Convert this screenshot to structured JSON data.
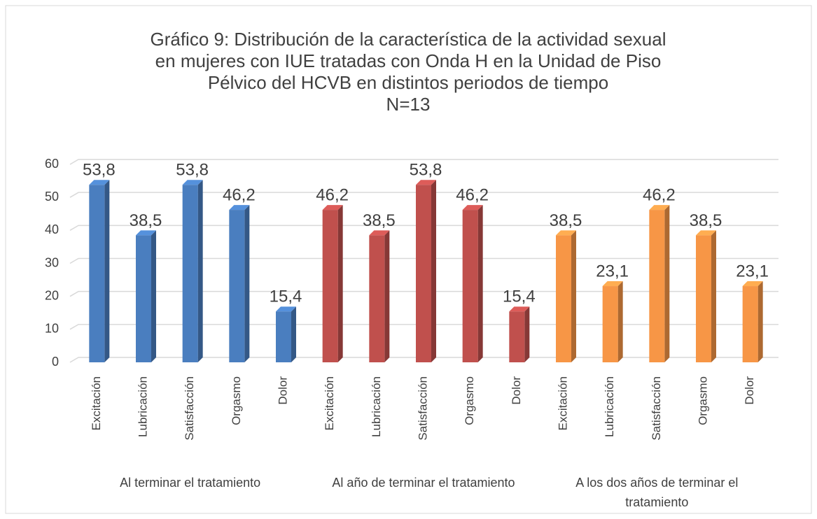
{
  "chart_data": {
    "type": "bar",
    "title": [
      "Gráfico 9: Distribución de la característica de la actividad sexual",
      "en mujeres con IUE tratadas con Onda H en la Unidad de Piso",
      "Pélvico del HCVB en distintos periodos de tiempo"
    ],
    "subtitle": "N=13",
    "groups": [
      {
        "name": "Al terminar el tratamiento",
        "color": "#4a7ebf",
        "categories": [
          "Excitación",
          "Lubricación",
          "Satisfacción",
          "Orgasmo",
          "Dolor"
        ],
        "values": [
          53.8,
          38.5,
          53.8,
          46.2,
          15.4
        ],
        "value_labels": [
          "53,8",
          "38,5",
          "53,8",
          "46,2",
          "15,4"
        ]
      },
      {
        "name": "Al año de terminar el tratamiento",
        "color": "#c0504d",
        "categories": [
          "Excitación",
          "Lubricación",
          "Satisfacción",
          "Orgasmo",
          "Dolor"
        ],
        "values": [
          46.2,
          38.5,
          53.8,
          46.2,
          15.4
        ],
        "value_labels": [
          "46,2",
          "38,5",
          "53,8",
          "46,2",
          "15,4"
        ]
      },
      {
        "name": "A los dos años de terminar el tratamiento",
        "color": "#f79646",
        "categories": [
          "Excitación",
          "Lubricación",
          "Satisfacción",
          "Orgasmo",
          "Dolor"
        ],
        "values": [
          38.5,
          23.1,
          46.2,
          38.5,
          23.1
        ],
        "value_labels": [
          "38,5",
          "23,1",
          "46,2",
          "38,5",
          "23,1"
        ]
      }
    ],
    "ylim": [
      0,
      60
    ],
    "yticks": [
      0,
      10,
      20,
      30,
      40,
      50,
      60
    ],
    "grid": true
  }
}
